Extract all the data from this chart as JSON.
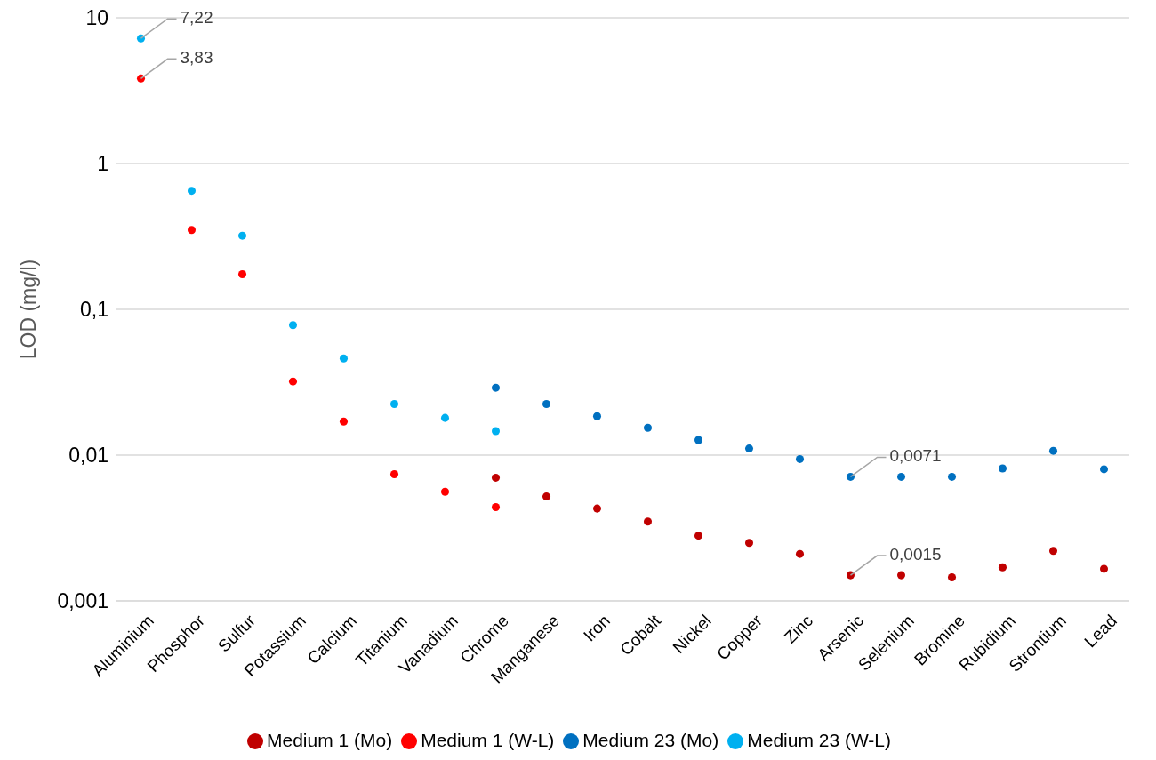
{
  "chart_data": {
    "type": "scatter",
    "ylabel": "LOD (mg/l)",
    "log": "y",
    "grid": "y",
    "legend": "bottom",
    "marker": "circle",
    "categories": [
      "Aluminium",
      "Phosphor",
      "Sulfur",
      "Potassium",
      "Calcium",
      "Titanium",
      "Vanadium",
      "Chrome",
      "Manganese",
      "Iron",
      "Cobalt",
      "Nickel",
      "Copper",
      "Zinc",
      "Arsenic",
      "Selenium",
      "Bromine",
      "Rubidium",
      "Strontium",
      "Lead"
    ],
    "ylim": [
      0.001,
      10
    ],
    "yticks": [
      {
        "value": 0.001,
        "label": "0,001"
      },
      {
        "value": 0.01,
        "label": "0,01"
      },
      {
        "value": 0.1,
        "label": "0,1"
      },
      {
        "value": 1,
        "label": "1"
      },
      {
        "value": 10,
        "label": "10"
      }
    ],
    "series": [
      {
        "name": "Medium 1 (Mo)",
        "color": "#c00000",
        "values": [
          null,
          null,
          null,
          null,
          null,
          null,
          null,
          0.007,
          0.0052,
          0.0043,
          0.0035,
          0.0028,
          0.0025,
          0.0021,
          0.0015,
          0.0015,
          0.00145,
          0.0017,
          0.0022,
          0.00166
        ],
        "value_labels": [
          null,
          null,
          null,
          null,
          null,
          null,
          null,
          null,
          null,
          null,
          null,
          null,
          null,
          null,
          "0,0015",
          null,
          null,
          null,
          null,
          null
        ]
      },
      {
        "name": "Medium 1 (W-L)",
        "color": "#ff0000",
        "values": [
          3.83,
          0.35,
          0.174,
          0.032,
          0.017,
          0.0074,
          0.0056,
          0.0044,
          null,
          null,
          null,
          null,
          null,
          null,
          null,
          null,
          null,
          null,
          null,
          null
        ],
        "value_labels": [
          "3,83",
          null,
          null,
          null,
          null,
          null,
          null,
          null,
          null,
          null,
          null,
          null,
          null,
          null,
          null,
          null,
          null,
          null,
          null,
          null
        ]
      },
      {
        "name": "Medium 23 (Mo)",
        "color": "#0070c0",
        "values": [
          null,
          null,
          null,
          null,
          null,
          null,
          null,
          0.029,
          0.0224,
          0.0185,
          0.0154,
          0.0127,
          0.0111,
          0.0094,
          0.0071,
          0.0071,
          0.0071,
          0.0081,
          0.0107,
          0.008
        ],
        "value_labels": [
          null,
          null,
          null,
          null,
          null,
          null,
          null,
          null,
          null,
          null,
          null,
          null,
          null,
          null,
          "0,0071",
          null,
          null,
          null,
          null,
          null
        ]
      },
      {
        "name": "Medium 23 (W-L)",
        "color": "#00b0f0",
        "values": [
          7.22,
          0.65,
          0.32,
          0.078,
          0.046,
          0.0224,
          0.018,
          0.0146,
          null,
          null,
          null,
          null,
          null,
          null,
          null,
          null,
          null,
          null,
          null,
          null
        ],
        "value_labels": [
          "7,22",
          null,
          null,
          null,
          null,
          null,
          null,
          null,
          null,
          null,
          null,
          null,
          null,
          null,
          null,
          null,
          null,
          null,
          null,
          null
        ]
      }
    ]
  }
}
